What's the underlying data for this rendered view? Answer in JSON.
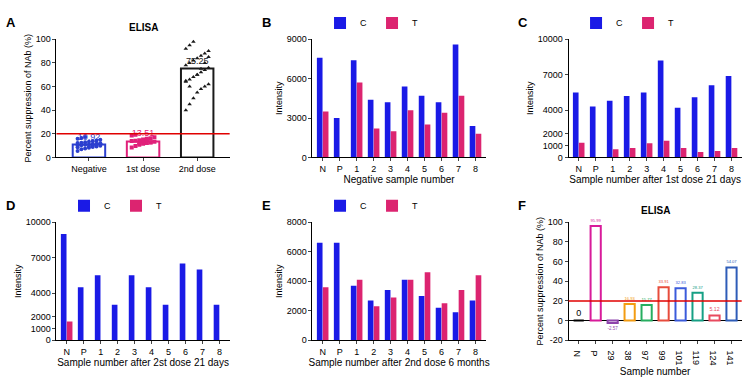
{
  "chart_data": [
    {
      "label": "A",
      "type": "bar",
      "title": "ELISA",
      "categories": [
        "Negative",
        "1st dose",
        "2nd dose"
      ],
      "values": [
        10.92,
        13.51,
        75.25
      ],
      "colors": [
        "#2b3fcf",
        "#e0207a",
        "#1a1a1a"
      ],
      "data_labels": true,
      "points": [
        [
          5.5,
          6.8,
          7.5,
          8.2,
          8.9,
          9.3,
          9.8,
          10.1,
          10.4,
          10.7,
          11.0,
          11.2,
          11.5,
          11.8,
          12.1,
          12.4,
          12.8,
          13.2,
          13.7,
          14.3,
          15.0,
          15.8,
          16.5,
          17.2,
          9.0,
          10.0,
          11.0,
          12.0,
          8.5,
          10.5
        ],
        [
          8.4,
          9.6,
          10.8,
          11.5,
          12.2,
          12.9,
          13.3,
          13.8,
          14.2,
          14.6,
          15.1,
          15.7,
          16.3,
          17.0,
          18.5,
          19.2,
          11.9,
          13.5,
          14.9,
          12.6
        ],
        [
          40,
          45,
          50,
          55,
          58,
          60,
          62,
          64,
          66,
          68,
          70,
          72,
          74,
          76,
          78,
          80,
          82,
          84,
          86,
          88,
          90,
          92,
          95,
          98,
          70,
          75,
          80,
          85,
          65,
          60
        ]
      ],
      "reference_line": 20,
      "y_label": "Percent suppression of NAb (%)",
      "ylim": [
        0,
        100
      ],
      "yticks": [
        0,
        20,
        40,
        60,
        80,
        100
      ],
      "grid": false
    },
    {
      "label": "B",
      "type": "bar",
      "categories": [
        "N",
        "P",
        "1",
        "2",
        "3",
        "4",
        "5",
        "6",
        "7",
        "8"
      ],
      "series": [
        {
          "name": "C",
          "color": "#1a1ae6",
          "values": [
            7600,
            3000,
            7400,
            4400,
            4200,
            5400,
            4700,
            4200,
            8600,
            2400
          ]
        },
        {
          "name": "T",
          "color": "#dc2470",
          "values": [
            3500,
            0,
            5700,
            2200,
            2000,
            3600,
            2500,
            3400,
            4700,
            1800
          ]
        }
      ],
      "x_label": "Negative sample number",
      "y_label": "Intensity",
      "ylim": [
        0,
        9000
      ],
      "yticks": [
        0,
        3000,
        6000,
        9000
      ],
      "grid": false
    },
    {
      "label": "C",
      "type": "bar",
      "categories": [
        "N",
        "P",
        "1",
        "2",
        "3",
        "4",
        "5",
        "6",
        "7",
        "8"
      ],
      "series": [
        {
          "name": "C",
          "color": "#1a1ae6",
          "values": [
            5500,
            4300,
            4800,
            5200,
            5500,
            8200,
            4200,
            5100,
            6100,
            6900
          ]
        },
        {
          "name": "T",
          "color": "#dc2470",
          "values": [
            1250,
            0,
            700,
            800,
            1200,
            1400,
            800,
            450,
            550,
            800
          ]
        }
      ],
      "x_label": "Sample number after 1st dose 21 days",
      "y_label": "Intensity",
      "ylim": [
        0,
        10000
      ],
      "yticks": [
        0,
        1000,
        2000,
        4000,
        7000,
        10000
      ],
      "grid": false
    },
    {
      "label": "D",
      "type": "bar",
      "categories": [
        "N",
        "P",
        "1",
        "2",
        "3",
        "4",
        "5",
        "6",
        "7",
        "8"
      ],
      "series": [
        {
          "name": "C",
          "color": "#1a1ae6",
          "values": [
            9000,
            4500,
            5500,
            3000,
            5500,
            4500,
            3000,
            6500,
            6000,
            3000
          ]
        },
        {
          "name": "T",
          "color": "#dc2470",
          "values": [
            1600,
            0,
            0,
            0,
            0,
            0,
            0,
            0,
            0,
            0
          ]
        }
      ],
      "x_label": "Sample number after 2st dose 21 days",
      "y_label": "Intensity",
      "ylim": [
        0,
        10000
      ],
      "yticks": [
        0,
        1000,
        2000,
        4000,
        7000,
        10000
      ],
      "grid": false
    },
    {
      "label": "E",
      "type": "bar",
      "categories": [
        "N",
        "P",
        "1",
        "2",
        "3",
        "4",
        "5",
        "6",
        "7",
        "8"
      ],
      "series": [
        {
          "name": "C",
          "color": "#1a1ae6",
          "values": [
            6600,
            6600,
            3700,
            2700,
            3400,
            4100,
            3000,
            2200,
            1900,
            2700
          ]
        },
        {
          "name": "T",
          "color": "#dc2470",
          "values": [
            3600,
            0,
            4100,
            2300,
            2900,
            4100,
            4600,
            2500,
            3400,
            4400
          ]
        }
      ],
      "x_label": "Sample number after 2nd dose 6 months",
      "y_label": "Intensity",
      "ylim": [
        0,
        8000
      ],
      "yticks": [
        0,
        2000,
        4000,
        6000,
        8000
      ],
      "grid": false
    },
    {
      "label": "F",
      "type": "bar",
      "title": "ELISA",
      "categories": [
        "N",
        "P",
        "29",
        "38",
        "97",
        "99",
        "101",
        "119",
        "124",
        "141"
      ],
      "values": [
        0,
        95.99,
        -2.57,
        16.93,
        15.77,
        33.91,
        32.83,
        28.37,
        5.12,
        54.07
      ],
      "colors": [
        "#000000",
        "#d81b9a",
        "#8e44ad",
        "#f39c12",
        "#27ae60",
        "#e74c3c",
        "#3b5bdb",
        "#16a085",
        "#e84a5f",
        "#2e5cb8"
      ],
      "data_labels": true,
      "reference_line": 20,
      "x_label": "Sample number",
      "y_label": "Percent suppression of NAb (%)",
      "ylim": [
        -20,
        100
      ],
      "yticks": [
        -20,
        0,
        20,
        40,
        60,
        80,
        100
      ],
      "grid": false
    }
  ]
}
